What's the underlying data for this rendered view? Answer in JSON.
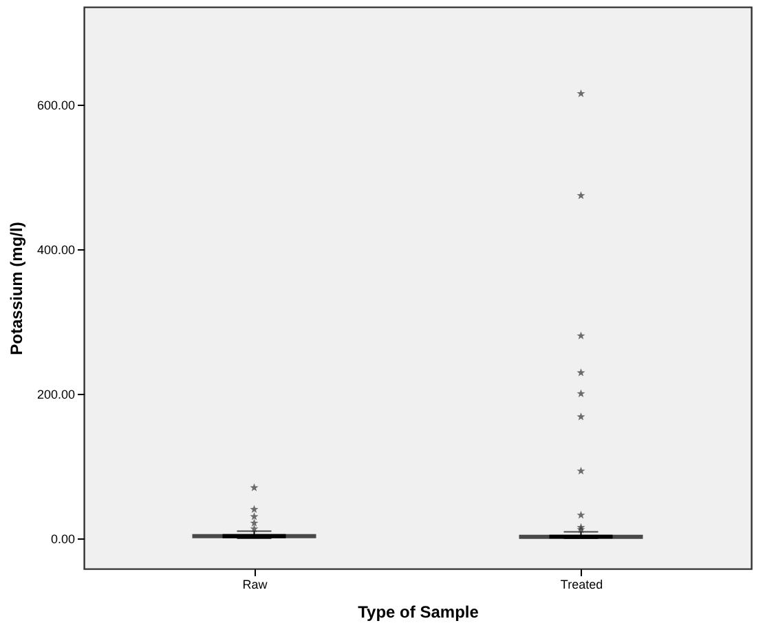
{
  "chart_data": {
    "type": "box",
    "xlabel": "Type of Sample",
    "ylabel": "Potassium (mg/l)",
    "categories": [
      "Raw",
      "Treated"
    ],
    "boxes": [
      {
        "low": 0,
        "q1": 1,
        "median": 3,
        "q3": 5,
        "high": 10,
        "outliers": [
          13,
          21,
          30,
          40,
          70
        ]
      },
      {
        "low": 0,
        "q1": 0.5,
        "median": 2,
        "q3": 4,
        "high": 9,
        "outliers": [
          12,
          15,
          32,
          93,
          168,
          200,
          229,
          280,
          474,
          615
        ]
      }
    ],
    "color": "#000000",
    "ylim": [
      -42,
      735
    ],
    "yticks": [
      {
        "value": 0,
        "label": "0.00"
      },
      {
        "value": 200,
        "label": "200.00"
      },
      {
        "value": 400,
        "label": "400.00"
      },
      {
        "value": 600,
        "label": "600.00"
      }
    ],
    "grid": false,
    "marker": "star"
  }
}
